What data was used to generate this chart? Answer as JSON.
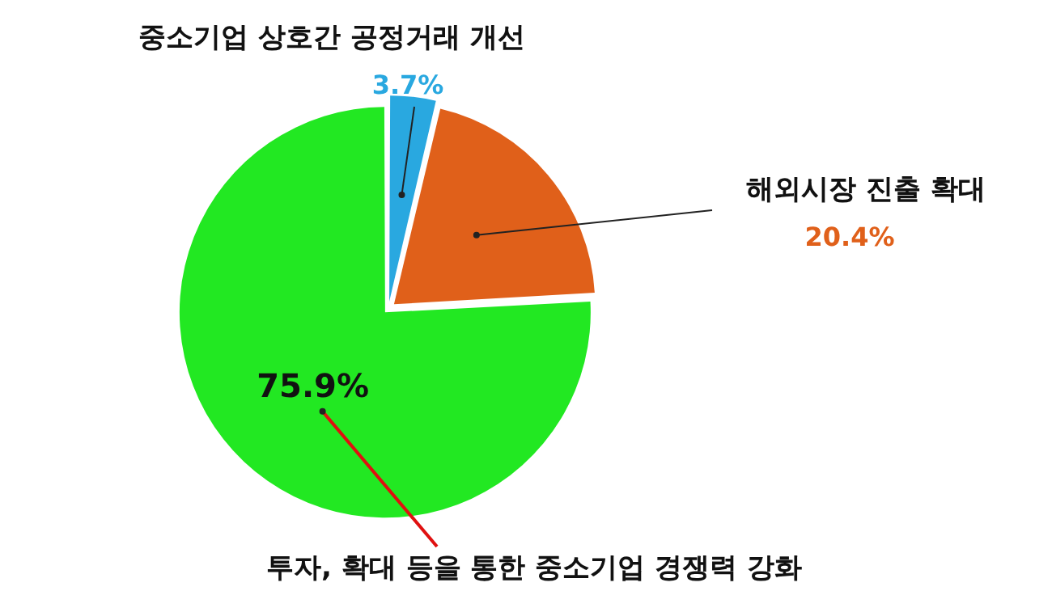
{
  "chart_data": {
    "type": "pie",
    "categories": [
      "중소기업 상호간 공정거래 개선",
      "해외시장 진출 확대",
      "투자, 확대 등을 통한 중소기업 경쟁력 강화"
    ],
    "values": [
      3.7,
      20.4,
      75.9
    ],
    "value_labels": [
      "3.7%",
      "20.4%",
      "75.9%"
    ],
    "colors": [
      "#29a8e0",
      "#e0601a",
      "#22e822"
    ],
    "legend": false
  }
}
